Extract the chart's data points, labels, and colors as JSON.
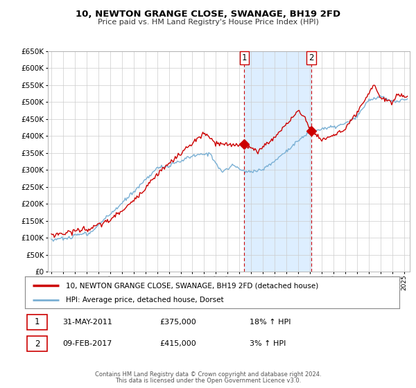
{
  "title": "10, NEWTON GRANGE CLOSE, SWANAGE, BH19 2FD",
  "subtitle": "Price paid vs. HM Land Registry's House Price Index (HPI)",
  "legend_line1": "10, NEWTON GRANGE CLOSE, SWANAGE, BH19 2FD (detached house)",
  "legend_line2": "HPI: Average price, detached house, Dorset",
  "event1_label": "1",
  "event1_date": "31-MAY-2011",
  "event1_price": "£375,000",
  "event1_hpi": "18% ↑ HPI",
  "event1_year": 2011.42,
  "event1_value": 375000,
  "event2_label": "2",
  "event2_date": "09-FEB-2017",
  "event2_price": "£415,000",
  "event2_hpi": "3% ↑ HPI",
  "event2_year": 2017.11,
  "event2_value": 415000,
  "footer1": "Contains HM Land Registry data © Crown copyright and database right 2024.",
  "footer2": "This data is licensed under the Open Government Licence v3.0.",
  "price_line_color": "#cc0000",
  "hpi_line_color": "#7ab0d4",
  "shade_color": "#ddeeff",
  "vline_color": "#cc0000",
  "background_color": "#ffffff",
  "grid_color": "#cccccc",
  "ylim": [
    0,
    650000
  ],
  "yticks": [
    0,
    50000,
    100000,
    150000,
    200000,
    250000,
    300000,
    350000,
    400000,
    450000,
    500000,
    550000,
    600000,
    650000
  ],
  "xlim_start": 1994.7,
  "xlim_end": 2025.5
}
